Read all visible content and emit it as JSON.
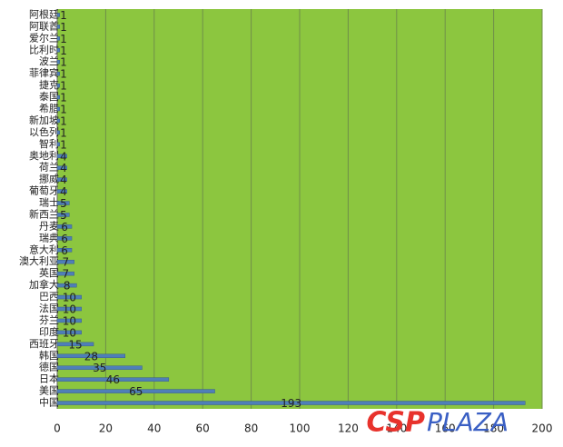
{
  "chart_data": {
    "type": "barh",
    "categories": [
      "阿根廷",
      "阿联酋",
      "爱尔兰",
      "比利时",
      "波兰",
      "菲律宾",
      "捷克",
      "泰国",
      "希腊",
      "新加坡",
      "以色列",
      "智利",
      "奥地利",
      "荷兰",
      "挪威",
      "葡萄牙",
      "瑞士",
      "新西兰",
      "丹麦",
      "瑞典",
      "意大利",
      "澳大利亚",
      "英国",
      "加拿大",
      "巴西",
      "法国",
      "芬兰",
      "印度",
      "西班牙",
      "韩国",
      "德国",
      "日本",
      "美国",
      "中国"
    ],
    "values": [
      1,
      1,
      1,
      1,
      1,
      1,
      1,
      1,
      1,
      1,
      1,
      1,
      4,
      4,
      4,
      4,
      5,
      5,
      6,
      6,
      6,
      7,
      7,
      8,
      10,
      10,
      10,
      10,
      15,
      28,
      35,
      46,
      65,
      193
    ],
    "color": "#4f7fb8",
    "background": "#8cc63f",
    "xlim": [
      0,
      200
    ],
    "xticks": [
      0,
      20,
      40,
      60,
      80,
      100,
      120,
      140,
      160,
      180,
      200
    ],
    "grid": true,
    "watermark": [
      "CSP",
      "PLAZA"
    ]
  }
}
